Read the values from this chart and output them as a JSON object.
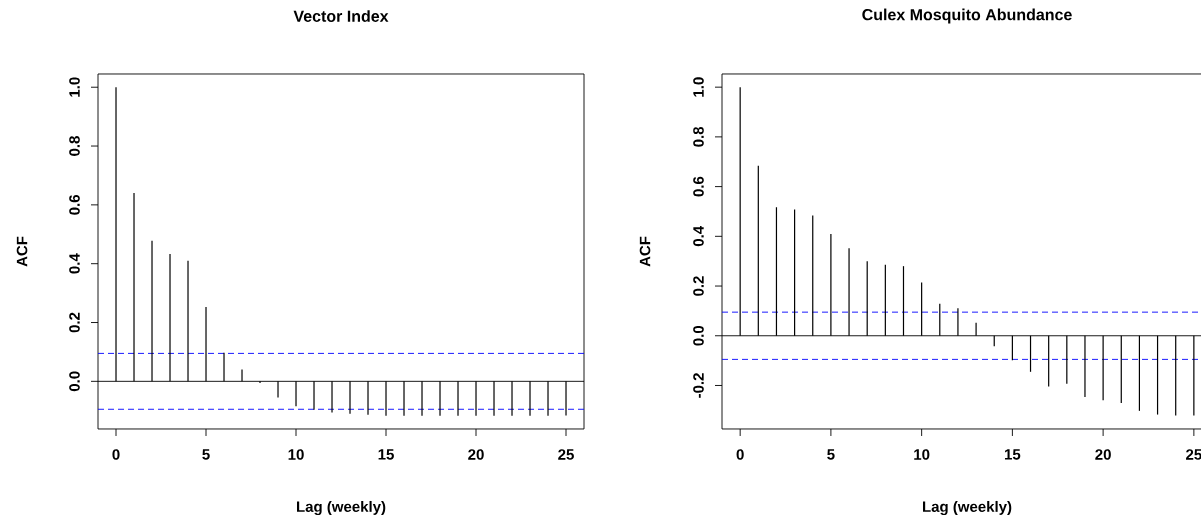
{
  "chart_data": [
    {
      "type": "bar",
      "title": "Vector Index",
      "xlabel": "Lag (weekly)",
      "ylabel": "ACF",
      "x": [
        0,
        1,
        2,
        3,
        4,
        5,
        6,
        7,
        8,
        9,
        10,
        11,
        12,
        13,
        14,
        15,
        16,
        17,
        18,
        19,
        20,
        21,
        22,
        23,
        24,
        25
      ],
      "series": [
        {
          "color": "#000000",
          "values": [
            1.0,
            0.64,
            0.478,
            0.433,
            0.41,
            0.253,
            0.097,
            0.04,
            -0.006,
            -0.055,
            -0.085,
            -0.097,
            -0.106,
            -0.11,
            -0.114,
            -0.117,
            -0.117,
            -0.117,
            -0.117,
            -0.117,
            -0.117,
            -0.117,
            -0.117,
            -0.117,
            -0.117,
            -0.116
          ]
        }
      ],
      "xlim": [
        -1,
        26
      ],
      "ylim": [
        -0.162,
        1.045
      ],
      "xticks": [
        0,
        5,
        10,
        15,
        20,
        25
      ],
      "yticks": [
        {
          "value": 0,
          "label": "0.0"
        },
        {
          "value": 0.2,
          "label": "0.2"
        },
        {
          "value": 0.4,
          "label": "0.4"
        },
        {
          "value": 0.6,
          "label": "0.6"
        },
        {
          "value": 0.8,
          "label": "0.8"
        },
        {
          "value": 1,
          "label": "1.0"
        }
      ],
      "ref_lines": [
        {
          "axis": "y",
          "value": 0,
          "color": "#000000",
          "line_style": "solid"
        },
        {
          "axis": "y",
          "value": 0.095,
          "color": "#0000ff",
          "line_style": "dashed"
        },
        {
          "axis": "y",
          "value": -0.095,
          "color": "#0000ff",
          "line_style": "dashed"
        }
      ]
    },
    {
      "type": "bar",
      "title": "Culex Mosquito Abundance",
      "xlabel": "Lag (weekly)",
      "ylabel": "ACF",
      "x": [
        0,
        1,
        2,
        3,
        4,
        5,
        6,
        7,
        8,
        9,
        10,
        11,
        12,
        13,
        14,
        15,
        16,
        17,
        18,
        19,
        20,
        21,
        22,
        23,
        24,
        25
      ],
      "series": [
        {
          "color": "#000000",
          "values": [
            1.0,
            0.684,
            0.517,
            0.508,
            0.484,
            0.409,
            0.352,
            0.3,
            0.286,
            0.28,
            0.214,
            0.129,
            0.111,
            0.052,
            -0.042,
            -0.099,
            -0.145,
            -0.204,
            -0.193,
            -0.246,
            -0.259,
            -0.27,
            -0.302,
            -0.317,
            -0.321,
            -0.321
          ]
        }
      ],
      "xlim": [
        -1,
        26
      ],
      "ylim": [
        -0.375,
        1.053
      ],
      "xticks": [
        0,
        5,
        10,
        15,
        20,
        25
      ],
      "yticks": [
        {
          "value": -0.2,
          "label": "-0.2"
        },
        {
          "value": 0,
          "label": "0.0"
        },
        {
          "value": 0.2,
          "label": "0.2"
        },
        {
          "value": 0.4,
          "label": "0.4"
        },
        {
          "value": 0.6,
          "label": "0.6"
        },
        {
          "value": 0.8,
          "label": "0.8"
        },
        {
          "value": 1,
          "label": "1.0"
        }
      ],
      "ref_lines": [
        {
          "axis": "y",
          "value": 0,
          "color": "#000000",
          "line_style": "solid"
        },
        {
          "axis": "y",
          "value": 0.095,
          "color": "#0000ff",
          "line_style": "dashed"
        },
        {
          "axis": "y",
          "value": -0.095,
          "color": "#0000ff",
          "line_style": "dashed"
        }
      ]
    }
  ]
}
